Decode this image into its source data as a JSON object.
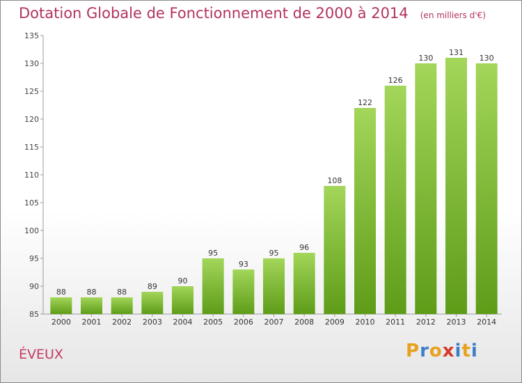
{
  "chart_data": {
    "type": "bar",
    "title": "Dotation Globale de Fonctionnement de 2000 à 2014",
    "subtitle": "(en milliers d'€)",
    "categories": [
      "2000",
      "2001",
      "2002",
      "2003",
      "2004",
      "2005",
      "2006",
      "2007",
      "2008",
      "2009",
      "2010",
      "2011",
      "2012",
      "2013",
      "2014"
    ],
    "values": [
      88,
      88,
      88,
      89,
      90,
      95,
      93,
      95,
      96,
      108,
      122,
      126,
      130,
      131,
      130
    ],
    "ylim": [
      85,
      135
    ],
    "yticks": [
      85,
      90,
      95,
      100,
      105,
      110,
      115,
      120,
      125,
      130,
      135
    ],
    "grid": false,
    "bar_color": "#7cbf2e"
  },
  "place_name": "ÉVEUX",
  "logo": {
    "text": "Proxiti",
    "colors": [
      "#e8a020",
      "#3a7fc8",
      "#e8a020",
      "#d63a2a",
      "#3a7fc8",
      "#e8a020",
      "#3a7fc8"
    ]
  }
}
